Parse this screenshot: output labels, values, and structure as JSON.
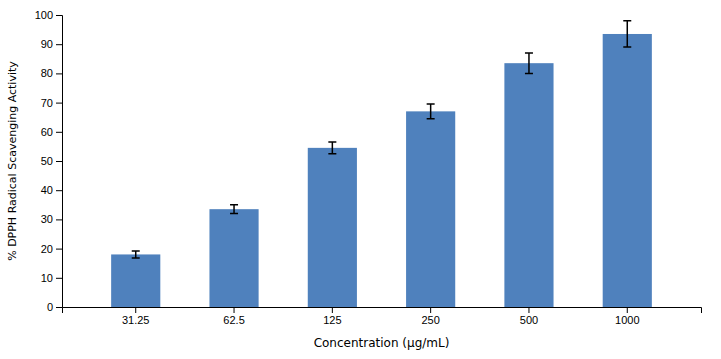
{
  "chart_data": {
    "type": "bar",
    "categories": [
      "31.25",
      "62.5",
      "125",
      "250",
      "500",
      "1000"
    ],
    "values": [
      18.0,
      33.5,
      54.5,
      67.0,
      83.5,
      93.5
    ],
    "errors": [
      1.2,
      1.5,
      2.0,
      2.5,
      3.5,
      4.5
    ],
    "color": "#4F81BD",
    "xlabel": "Concentration (μg/mL)",
    "ylabel": "% DPPH Radical Scavenging Activity",
    "ylim": [
      0,
      100
    ],
    "yticks": [
      0,
      10,
      20,
      30,
      40,
      50,
      60,
      70,
      80,
      90,
      100
    ],
    "grid": false
  }
}
